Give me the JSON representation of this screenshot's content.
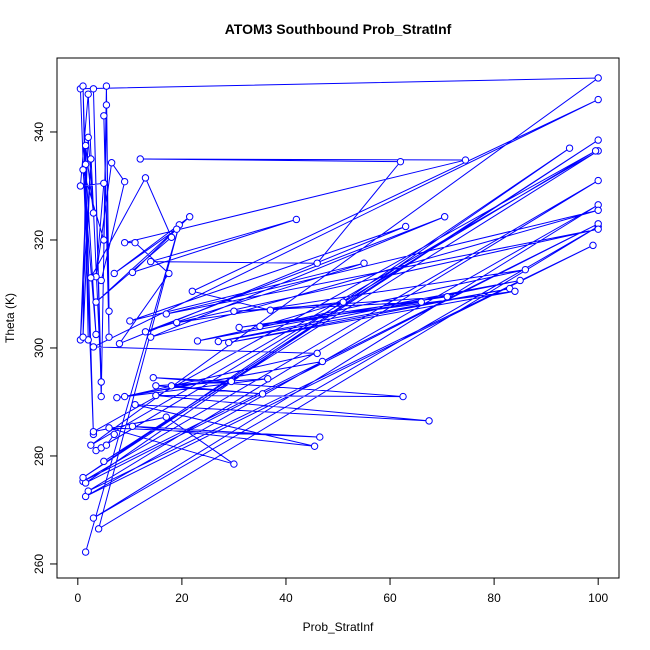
{
  "chart_data": {
    "type": "line",
    "title": "ATOM3 Southbound Prob_StratInf",
    "x_label": "Prob_StratInf",
    "y_label": "Theta (K)",
    "color": "#0000ff",
    "marker": "circle",
    "xlim": [
      -4,
      104
    ],
    "ylim": [
      257.4,
      353.7
    ],
    "xticks": [
      0,
      20,
      40,
      60,
      80,
      100
    ],
    "yticks": [
      260,
      280,
      300,
      320,
      340
    ],
    "x": [
      1.5,
      19.5,
      4,
      100,
      3,
      100,
      1.5,
      99,
      2,
      100,
      1,
      100,
      1.5,
      94.5,
      1,
      100,
      5,
      100,
      2.5,
      100,
      0.5,
      3,
      1,
      2,
      1.5,
      3,
      2,
      0.5,
      2.5,
      1,
      1.5,
      3.5,
      1,
      5,
      5.5,
      6,
      5,
      6,
      5.5,
      4.5,
      3,
      4.5,
      2,
      0.5,
      5,
      3.5,
      6.5,
      9,
      4.5,
      2.5,
      13,
      18,
      3.5,
      21.5,
      7,
      19,
      10.5,
      42,
      14,
      46,
      62,
      12,
      74.5,
      9,
      11,
      17.5,
      8,
      63,
      10,
      55,
      13,
      70.5,
      14,
      100,
      17,
      100,
      19,
      86,
      23,
      85,
      27,
      83,
      29,
      84,
      31,
      71,
      30,
      66,
      35,
      51,
      37,
      22,
      100,
      3,
      46,
      9,
      47,
      7.5,
      36.5,
      15,
      35.5,
      18,
      29.5,
      14.5,
      62.5,
      15,
      67.5,
      11,
      45.5,
      10.5,
      46.5,
      6,
      30,
      17,
      3,
      99.5,
      3.5,
      4.5,
      5.5,
      7
    ],
    "values": [
      262.2,
      322.8,
      266.5,
      322.5,
      268.5,
      326.5,
      272.5,
      319,
      273.5,
      331,
      275.3,
      323,
      275,
      337,
      276,
      338.5,
      279,
      336.5,
      282,
      350,
      348,
      284,
      348.5,
      301.5,
      337.5,
      325,
      339,
      301.5,
      335,
      302,
      334,
      302.5,
      333,
      320,
      348.5,
      306.8,
      343,
      302,
      345,
      291,
      348,
      293.7,
      347,
      330,
      330.5,
      313.2,
      334.3,
      330.8,
      312.5,
      313,
      331.5,
      320.5,
      308.5,
      324.3,
      313.8,
      322,
      314,
      323.8,
      316,
      315.7,
      334.5,
      335,
      334.8,
      319.5,
      319.5,
      313.8,
      300.8,
      322.5,
      305,
      315.7,
      303,
      324.3,
      302,
      325.5,
      306.3,
      322,
      304.7,
      314.5,
      301.3,
      312.5,
      301.2,
      311,
      301,
      310.5,
      303.8,
      309.5,
      306.8,
      308.5,
      304,
      308.5,
      307,
      310.5,
      346,
      300.2,
      299,
      291,
      297.5,
      290.8,
      294.3,
      293,
      291.5,
      293,
      293.8,
      294.5,
      291,
      291.2,
      286.5,
      289.5,
      281.8,
      285.5,
      283.5,
      285.2,
      278.5,
      287.2,
      284.5,
      336.5,
      281,
      281.5,
      282,
      284
    ]
  }
}
